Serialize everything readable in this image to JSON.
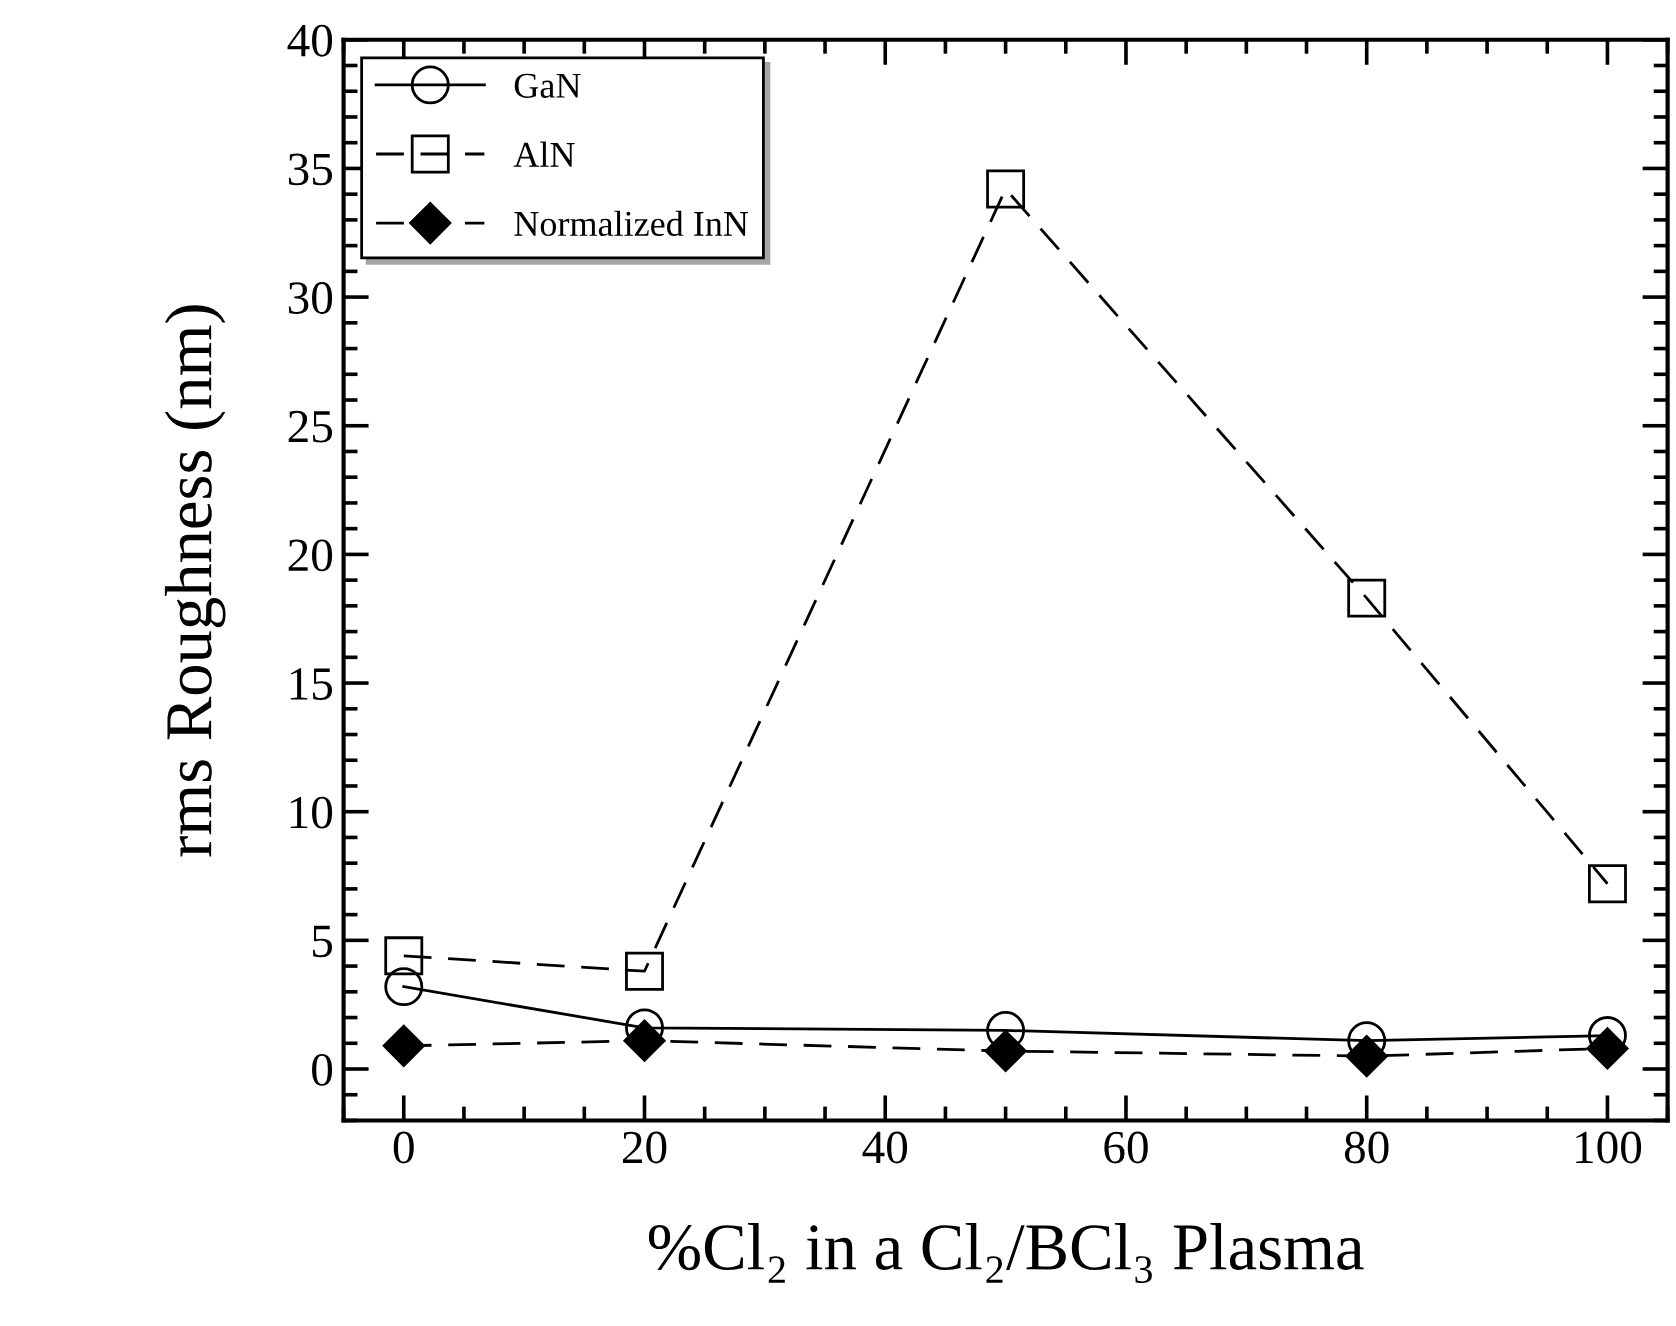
{
  "chart_data": {
    "type": "line",
    "xlabel": "%Cl₂ in a Cl₂/BCl₃ Plasma",
    "ylabel": "rms Roughness (nm)",
    "x": [
      0,
      20,
      50,
      80,
      100
    ],
    "series": [
      {
        "name": "GaN",
        "color": "#000000",
        "marker": "circle",
        "line_style": "solid",
        "values": [
          3.2,
          1.6,
          1.5,
          1.1,
          1.3
        ]
      },
      {
        "name": "AlN",
        "color": "#000000",
        "marker": "square",
        "line_style": "dashed",
        "values": [
          4.4,
          3.8,
          34.2,
          18.3,
          7.2
        ]
      },
      {
        "name": "Normalized InN",
        "color": "#000000",
        "marker": "diamond",
        "line_style": "dashed",
        "values": [
          0.9,
          1.1,
          0.7,
          0.5,
          0.8
        ]
      }
    ],
    "xlim": [
      -5,
      105
    ],
    "ylim": [
      -2,
      40
    ],
    "xticks": [
      0,
      20,
      40,
      60,
      80,
      100
    ],
    "yticks": [
      0,
      5,
      10,
      15,
      20,
      25,
      30,
      35,
      40
    ],
    "grid": false,
    "legend": "top left"
  }
}
